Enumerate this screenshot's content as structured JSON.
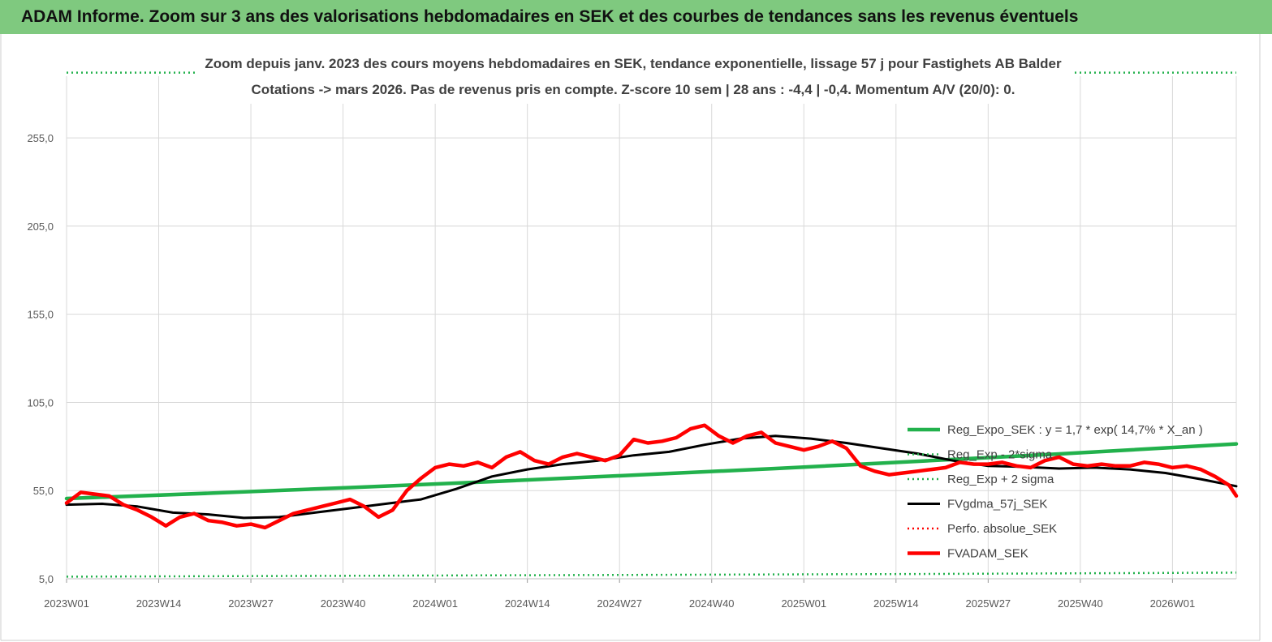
{
  "banner": {
    "title": "ADAM Informe. Zoom sur 3 ans des valorisations hebdomadaires en SEK et des courbes de tendances sans les revenus éventuels",
    "background": "#7fc97f"
  },
  "chart_data": {
    "type": "line",
    "title_line1": "Zoom depuis janv. 2023 des cours moyens hebdomadaires en SEK, tendance exponentielle, lissage 57 j pour Fastighets AB Balder",
    "title_line2": "Cotations -> mars 2026. Pas de revenus pris en compte. Z-score 10 sem | 28 ans : -4,4 | -0,4. Momentum A/V (20/0): 0.",
    "x_ticks": [
      "2023W01",
      "2023W14",
      "2023W27",
      "2023W40",
      "2024W01",
      "2024W14",
      "2024W27",
      "2024W40",
      "2025W01",
      "2025W14",
      "2025W27",
      "2025W40",
      "2026W01"
    ],
    "x_range_weeks": [
      0,
      165
    ],
    "y_ticks": [
      "5,0",
      "55,0",
      "105,0",
      "155,0",
      "205,0",
      "255,0"
    ],
    "ylim": [
      5,
      290
    ],
    "grid": true,
    "legend_position": "right",
    "series": [
      {
        "name": "Reg_Expo_SEK : y = 1,7 * exp( 14,7% *  X_an )",
        "color": "#22b14c",
        "style": "solid-thick",
        "x": [
          0,
          20,
          40,
          60,
          80,
          100,
          120,
          140,
          165
        ],
        "y": [
          50.5,
          53.5,
          56.7,
          60.1,
          63.8,
          67.5,
          71.6,
          75.8,
          81.5
        ]
      },
      {
        "name": "Reg_Exp - 2*sigma",
        "color": "#22b14c",
        "style": "dotted",
        "x": [
          0,
          40,
          80,
          120,
          165
        ],
        "y": [
          6.2,
          6.7,
          7.2,
          7.7,
          8.5
        ]
      },
      {
        "name": "Reg_Exp + 2 sigma",
        "color": "#22b14c",
        "style": "dotted",
        "x": [
          0,
          165
        ],
        "y": [
          295,
          295
        ]
      },
      {
        "name": "FVgdma_57j_SEK",
        "color": "#000000",
        "style": "solid",
        "x": [
          0,
          5,
          10,
          15,
          20,
          25,
          30,
          35,
          40,
          45,
          50,
          55,
          60,
          65,
          70,
          75,
          80,
          85,
          90,
          95,
          100,
          105,
          110,
          115,
          120,
          125,
          130,
          135,
          140,
          145,
          150,
          155,
          160,
          165
        ],
        "y": [
          47,
          47.5,
          46,
          42.5,
          41.5,
          39.5,
          40,
          42.5,
          45,
          47.5,
          50,
          56,
          63,
          67,
          70,
          72,
          75,
          77,
          81,
          84.5,
          86,
          84.5,
          82,
          79,
          76,
          72,
          69,
          68.5,
          67.5,
          68,
          67,
          65,
          61.5,
          57.5
        ]
      },
      {
        "name": "Perfo. absolue_SEK",
        "color": "#ff0000",
        "style": "dotted",
        "x": [],
        "y": []
      },
      {
        "name": "FVADAM_SEK",
        "color": "#ff0000",
        "style": "solid-thick",
        "x": [
          0,
          2,
          4,
          6,
          8,
          10,
          12,
          14,
          16,
          18,
          20,
          22,
          24,
          26,
          28,
          30,
          32,
          34,
          36,
          38,
          40,
          42,
          44,
          46,
          48,
          50,
          52,
          54,
          56,
          58,
          60,
          62,
          64,
          66,
          68,
          70,
          72,
          74,
          76,
          78,
          80,
          82,
          84,
          86,
          88,
          90,
          92,
          94,
          96,
          98,
          100,
          102,
          104,
          106,
          108,
          110,
          112,
          114,
          116,
          118,
          120,
          122,
          124,
          126,
          128,
          130,
          132,
          134,
          136,
          138,
          140,
          142,
          144,
          146,
          148,
          150,
          152,
          154,
          156,
          158,
          160,
          162,
          164,
          165
        ],
        "y": [
          48,
          54,
          53,
          52,
          47,
          44,
          40,
          35,
          40,
          42,
          38,
          37,
          35,
          36,
          34,
          38,
          42,
          44,
          46,
          48,
          50,
          46,
          40,
          44,
          55,
          62,
          68,
          70,
          69,
          71,
          68,
          74,
          77,
          72,
          70,
          74,
          76,
          74,
          72,
          75,
          84,
          82,
          83,
          85,
          90,
          92,
          86,
          82,
          86,
          88,
          82,
          80,
          78,
          80,
          83,
          79,
          69,
          66,
          64,
          65,
          66,
          67,
          68,
          71,
          70,
          70,
          71,
          69,
          68,
          72,
          74,
          70,
          69,
          70,
          69,
          69,
          71,
          70,
          68,
          69,
          67,
          63,
          58,
          52
        ]
      }
    ]
  }
}
